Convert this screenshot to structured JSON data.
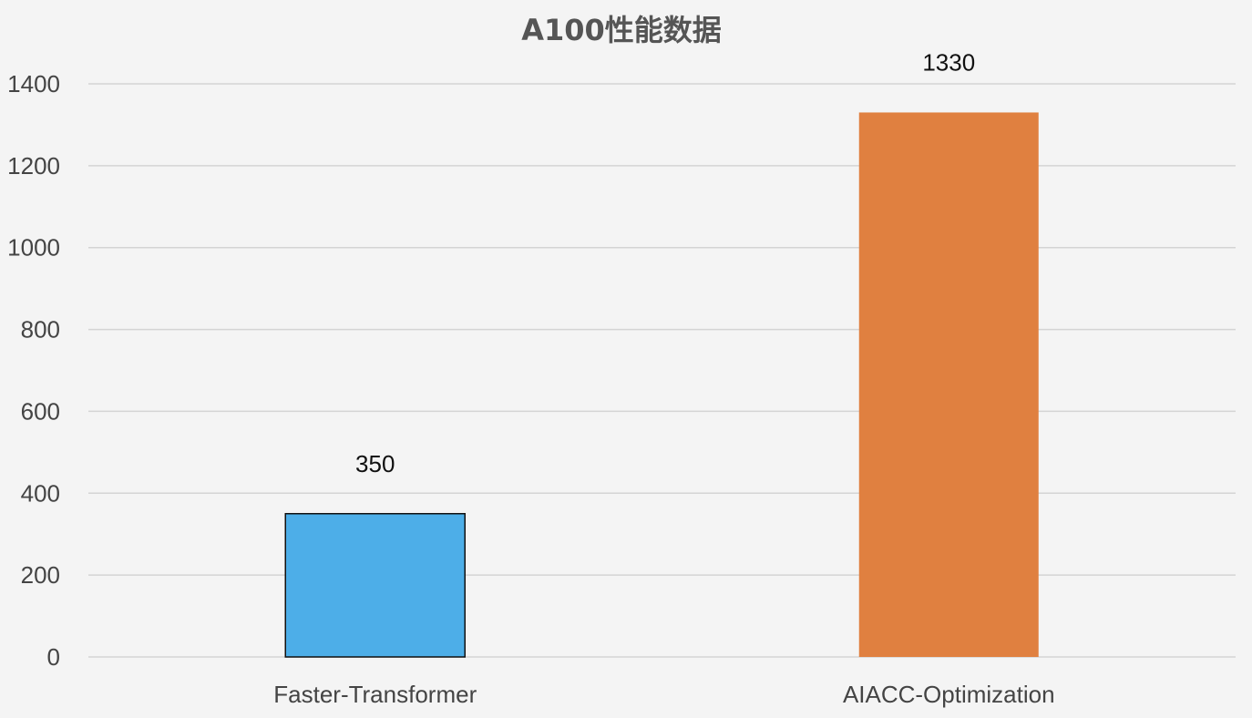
{
  "chart_data": {
    "type": "bar",
    "title": "A100性能数据",
    "categories": [
      "Faster-Transformer",
      "AIACC-Optimization"
    ],
    "values": [
      350,
      1330
    ],
    "data_labels": [
      "350",
      "1330"
    ],
    "colors": [
      "#4daee8",
      "#e08040"
    ],
    "ylim": [
      0,
      1400
    ],
    "yticks": [
      0,
      200,
      400,
      600,
      800,
      1000,
      1200,
      1400
    ],
    "grid": true,
    "legend": "none",
    "xlabel": "",
    "ylabel": ""
  }
}
